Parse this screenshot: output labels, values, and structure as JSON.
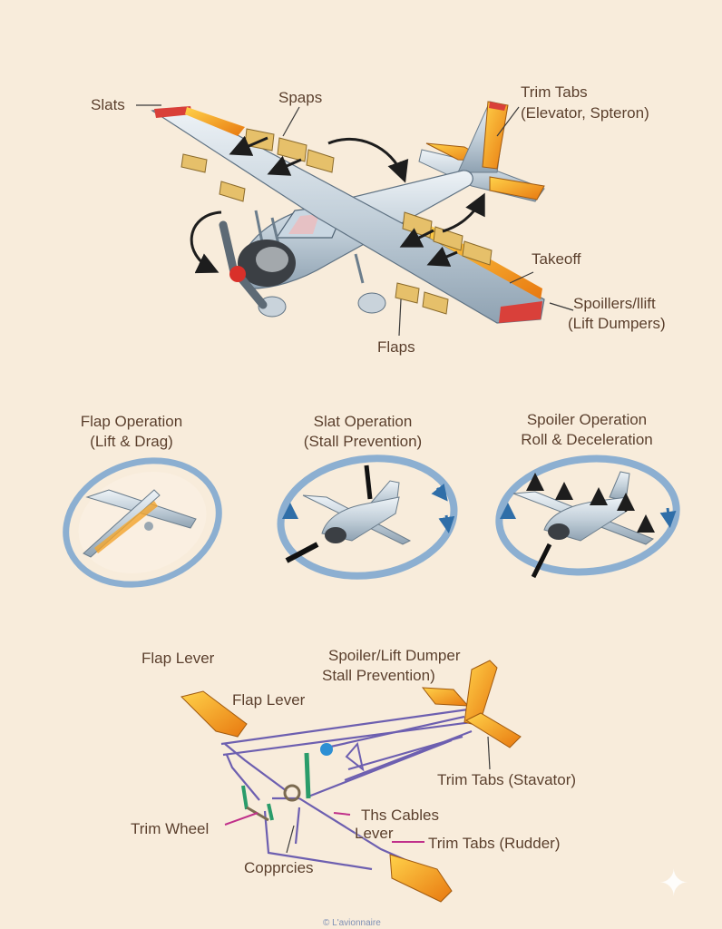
{
  "top_diagram": {
    "labels": {
      "slats": "Slats",
      "spaps": "Spaps",
      "trim_tabs_line1": "Trim Tabs",
      "trim_tabs_line2": "(Elevator, Spteron)",
      "takeoff": "Takeoff",
      "spoilers_line1": "Spoillers/llift",
      "spoilers_line2": "(Lift Dumpers)",
      "flaps": "Flaps"
    }
  },
  "operations": [
    {
      "title_line1": "Flap Operation",
      "title_line2": "(Lift & Drag)"
    },
    {
      "title_line1": "Slat Operation",
      "title_line2": "(Stall Prevention)"
    },
    {
      "title_line1": "Spoiler Operation",
      "title_line2": "Roll & Deceleration"
    }
  ],
  "controls_diagram": {
    "labels": {
      "flap_lever_1": "Flap Lever",
      "flap_lever_2": "Flap Lever",
      "spoiler_line1": "Spoiler/Lift Dumper",
      "spoiler_line2": "Stall Prevention)",
      "trim_tabs_stavator": "Trim Tabs (Stavator)",
      "ths_cables": "Ths Cables",
      "lever": "Lever",
      "trim_wheel": "Trim Wheel",
      "trim_tabs_rudder": "Trim Tabs (Rudder)",
      "copprcies": "Copprcies"
    }
  },
  "watermark": "© L'avionnaire",
  "colors": {
    "background": "#f8ecdb",
    "label_text": "#5a3e2b",
    "surface_orange": "#f0a020",
    "wing_silver": "#c6d3dd",
    "ring_blue": "#7fa8cf",
    "cable_purple": "#6d5fb0",
    "leader_pink": "#c0308a"
  }
}
